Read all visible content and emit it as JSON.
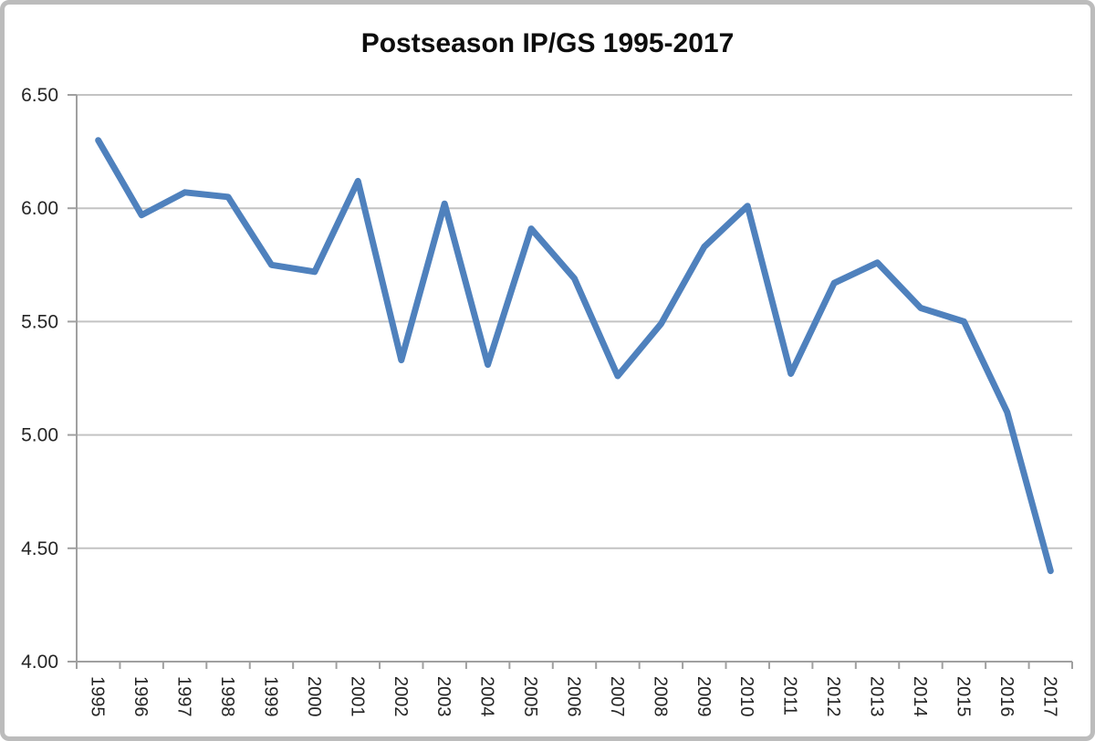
{
  "chart_data": {
    "type": "line",
    "title": "Postseason IP/GS 1995-2017",
    "categories": [
      "1995",
      "1996",
      "1997",
      "1998",
      "1999",
      "2000",
      "2001",
      "2002",
      "2003",
      "2004",
      "2005",
      "2006",
      "2007",
      "2008",
      "2009",
      "2010",
      "2011",
      "2012",
      "2013",
      "2014",
      "2015",
      "2016",
      "2017"
    ],
    "series": [
      {
        "name": "Postseason IP/GS",
        "values": [
          6.3,
          5.97,
          6.07,
          6.05,
          5.75,
          5.72,
          6.12,
          5.33,
          6.02,
          5.31,
          5.91,
          5.69,
          5.26,
          5.49,
          5.83,
          6.01,
          5.27,
          5.67,
          5.76,
          5.56,
          5.5,
          5.1,
          4.4
        ]
      }
    ],
    "xlabel": "",
    "ylabel": "",
    "ylim": [
      4.0,
      6.5
    ],
    "ytick_step": 0.5,
    "ytick_labels": [
      "4.00",
      "4.50",
      "5.00",
      "5.50",
      "6.00",
      "6.50"
    ],
    "grid": true,
    "legend_position": "none",
    "x_labels_rotation_deg": 90,
    "colors": {
      "line": "#4F81BD",
      "gridline": "#c3c3c3",
      "axis": "#a0a0a0",
      "tick": "#a0a0a0",
      "label": "#262626",
      "title": "#0d0d0d",
      "outer_border": "#bcbcbc",
      "background": "#ffffff"
    }
  }
}
